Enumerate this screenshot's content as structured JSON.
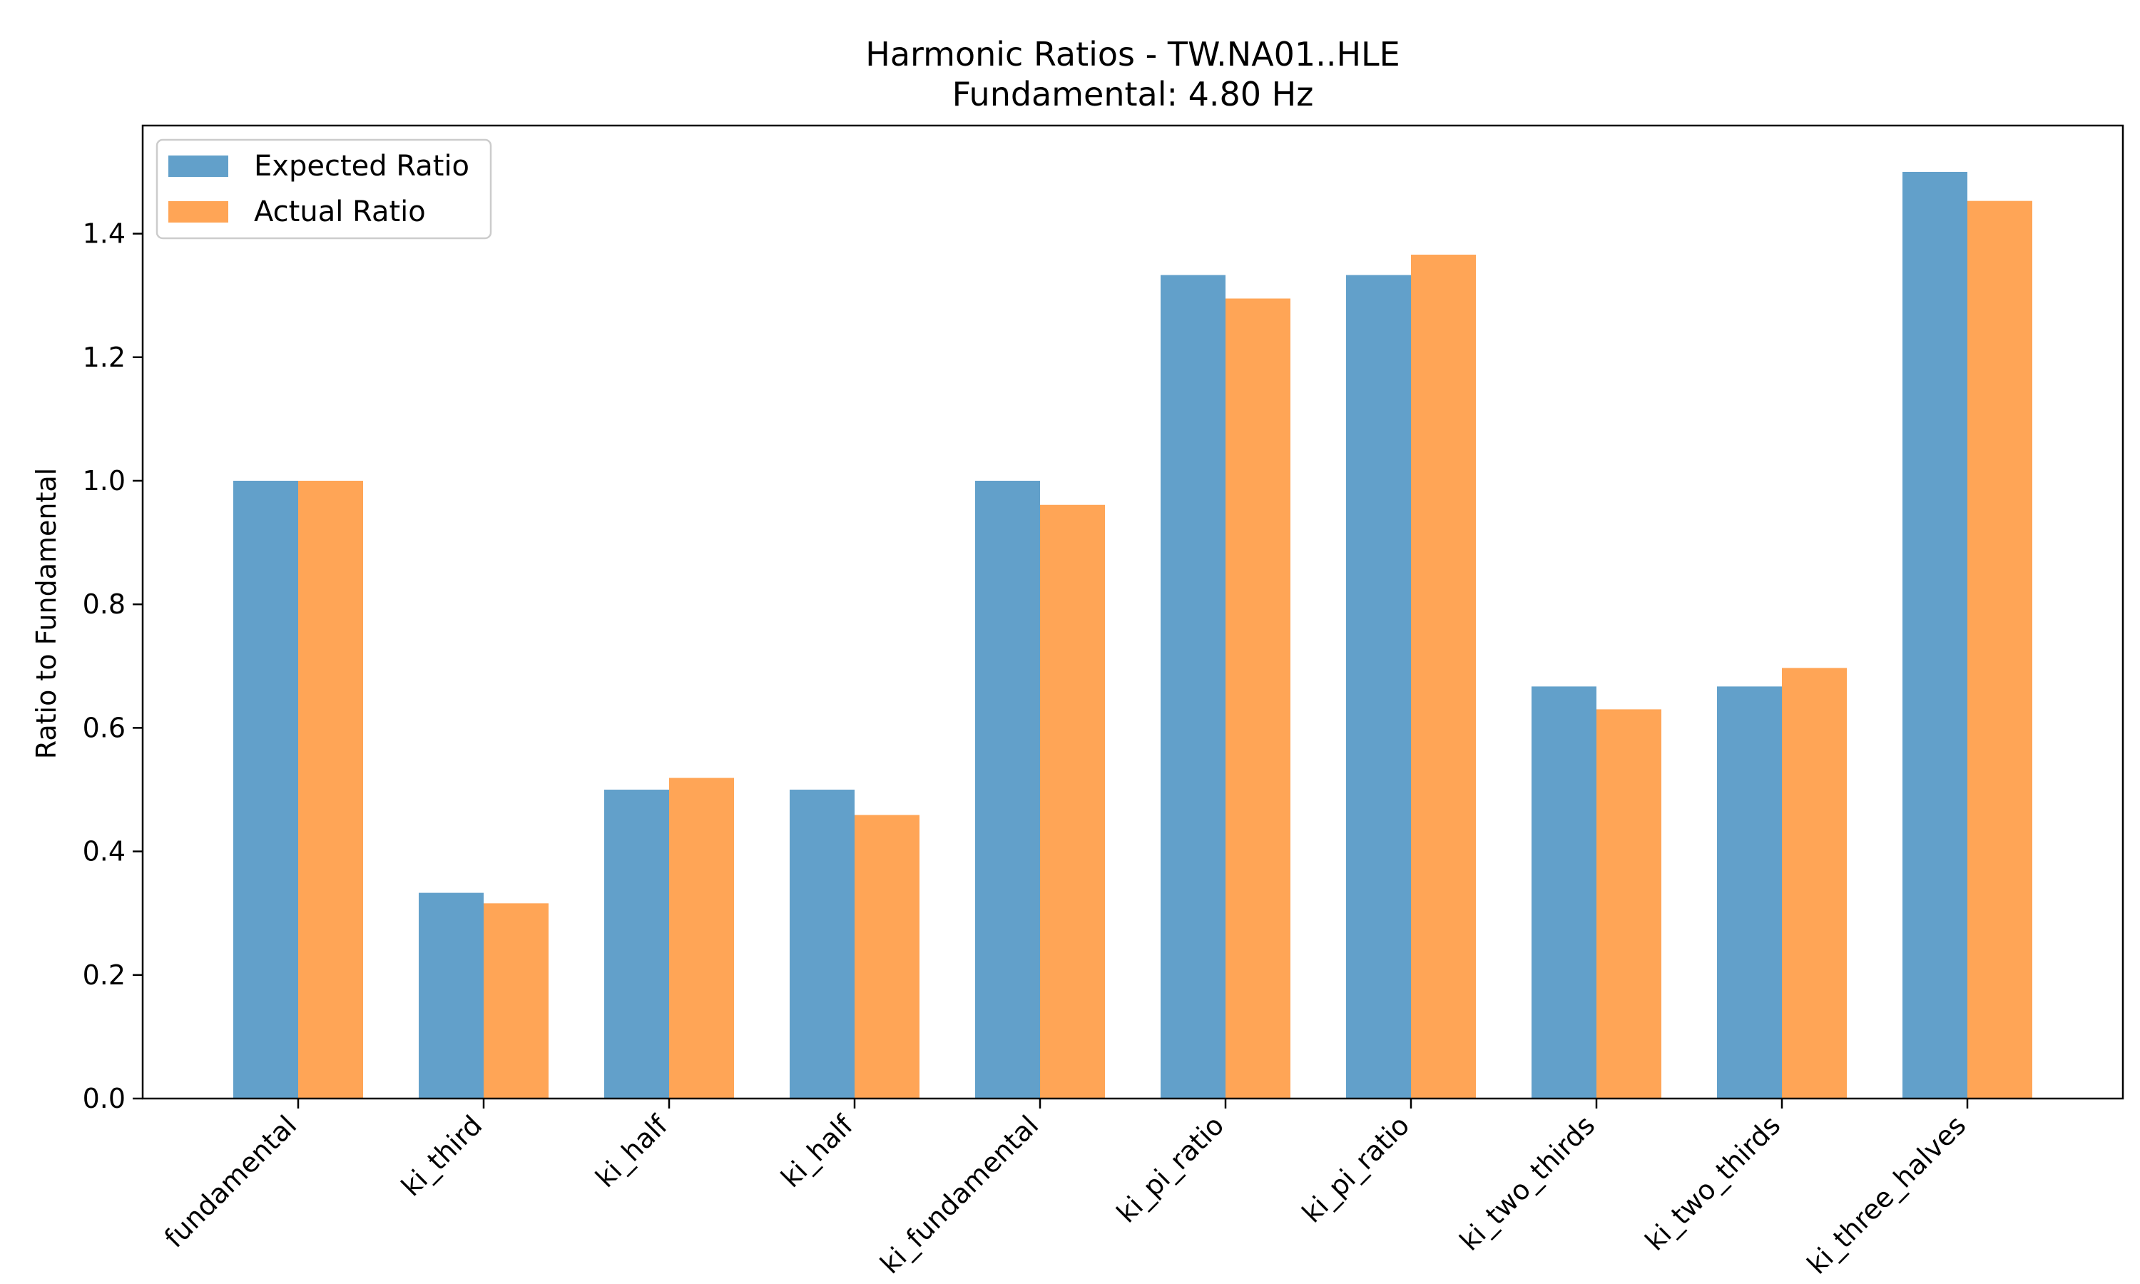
{
  "chart_data": {
    "type": "bar",
    "title": "Harmonic Ratios - TW.NA01..HLE",
    "subtitle": "Fundamental: 4.80 Hz",
    "xlabel": "",
    "ylabel": "Ratio to Fundamental",
    "categories": [
      "fundamental",
      "ki_third",
      "ki_half",
      "ki_half",
      "ki_fundamental",
      "ki_pi_ratio",
      "ki_pi_ratio",
      "ki_two_thirds",
      "ki_two_thirds",
      "ki_three_halves"
    ],
    "series": [
      {
        "name": "Expected Ratio",
        "color": "#1f77b4",
        "values": [
          1.0,
          0.333,
          0.5,
          0.5,
          1.0,
          1.333,
          1.333,
          0.667,
          0.667,
          1.5
        ]
      },
      {
        "name": "Actual Ratio",
        "color": "#ff7f0e",
        "values": [
          1.0,
          0.316,
          0.519,
          0.459,
          0.961,
          1.295,
          1.366,
          0.63,
          0.697,
          1.453
        ]
      }
    ],
    "ylim": [
      0,
      1.575
    ],
    "yticks": [
      0.0,
      0.2,
      0.4,
      0.6,
      0.8,
      1.0,
      1.2,
      1.4
    ],
    "ytick_labels": [
      "0.0",
      "0.2",
      "0.4",
      "0.6",
      "0.8",
      "1.0",
      "1.2",
      "1.4"
    ],
    "bar_opacity": 0.7,
    "grid": false,
    "legend_position": "top-left"
  }
}
